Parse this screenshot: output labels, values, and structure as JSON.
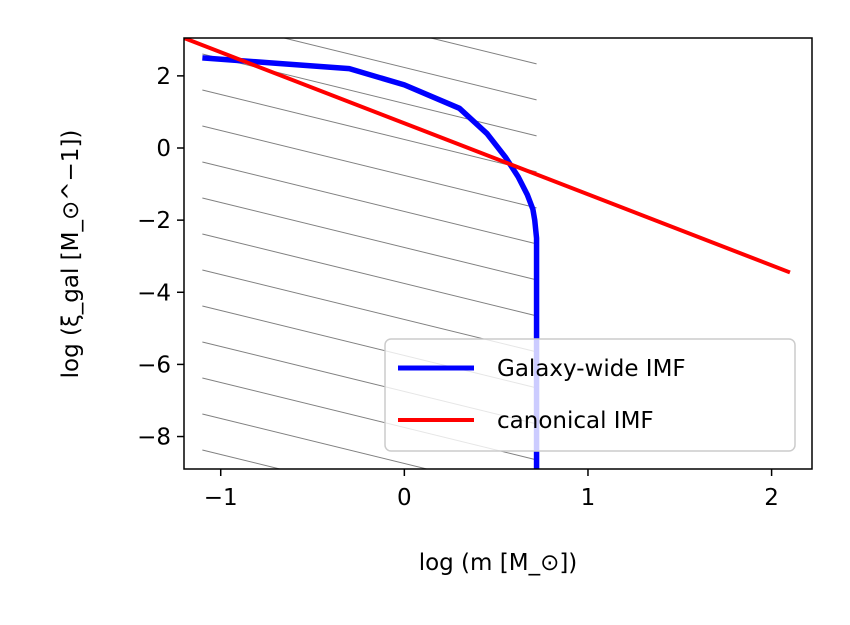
{
  "chart_data": {
    "type": "line",
    "title": "",
    "xlabel": "log (m [M_⊙])",
    "ylabel": "log (ξ_gal [M_⊙^−1])",
    "xlim": [
      -1.2,
      2.22
    ],
    "ylim": [
      -8.9,
      3.05
    ],
    "x_ticks": [
      -1,
      0,
      1,
      2
    ],
    "x_tick_labels": [
      "−1",
      "0",
      "1",
      "2"
    ],
    "y_ticks": [
      2,
      0,
      -2,
      -4,
      -6,
      -8
    ],
    "y_tick_labels": [
      "2",
      "0",
      "−2",
      "−4",
      "−6",
      "−8"
    ],
    "grid": false,
    "legend_position": "lower-right",
    "hatched_region": {
      "x_from": -1.1,
      "x_to": 0.72
    },
    "series": [
      {
        "name": "Galaxy-wide IMF",
        "color": "#0000ff",
        "x": [
          -1.1,
          -0.7,
          -0.3,
          0.0,
          0.3,
          0.45,
          0.55,
          0.62,
          0.67,
          0.7,
          0.71,
          0.72,
          0.72,
          0.72
        ],
        "y": [
          2.5,
          2.35,
          2.2,
          1.75,
          1.1,
          0.4,
          -0.25,
          -0.8,
          -1.3,
          -1.7,
          -2.0,
          -2.5,
          -5.0,
          -8.9
        ]
      },
      {
        "name": "canonical IMF",
        "color": "#ff0000",
        "x": [
          -1.2,
          2.1
        ],
        "y": [
          3.05,
          -3.45
        ]
      }
    ]
  }
}
